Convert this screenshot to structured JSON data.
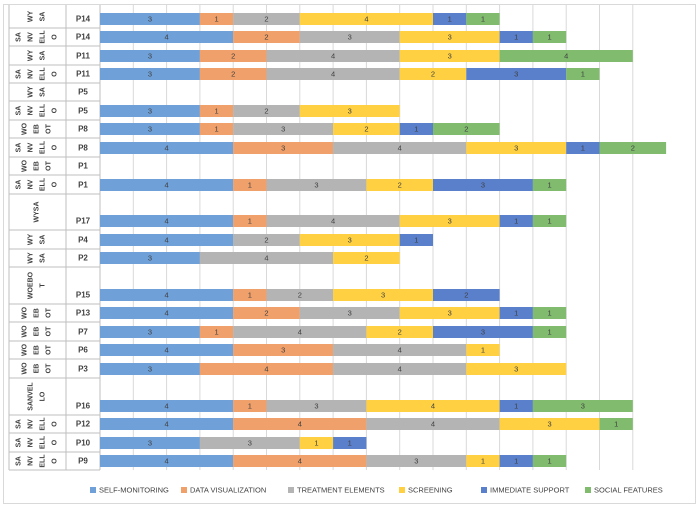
{
  "chart_data": {
    "type": "bar",
    "orientation": "horizontal",
    "stacked": true,
    "grid": true,
    "legend_position": "bottom",
    "xlim": [
      0,
      16
    ],
    "series": [
      {
        "name": "SELF-MONITORING",
        "color": "#6FA0D8"
      },
      {
        "name": "DATA VISUALIZATION",
        "color": "#F0A06A"
      },
      {
        "name": "TREATMENT ELEMENTS",
        "color": "#B4B4B4"
      },
      {
        "name": "SCREENING",
        "color": "#FFD142"
      },
      {
        "name": "IMMEDIATE SUPPORT",
        "color": "#5A7FCB"
      },
      {
        "name": "SOCIAL FEATURES",
        "color": "#80BB6E"
      }
    ],
    "rows": [
      {
        "label": "P14",
        "g1": "WY",
        "g2": "SA",
        "values": [
          3,
          1,
          2,
          4,
          1,
          1
        ]
      },
      {
        "label": "P14",
        "g1": "ELL",
        "g2": "O",
        "values": [
          4,
          2,
          3,
          3,
          1,
          1
        ]
      },
      {
        "label": "P11",
        "g1": "WY",
        "g2": "SA",
        "values": [
          3,
          2,
          4,
          3,
          0,
          4
        ]
      },
      {
        "label": "P11",
        "g1": "ELL",
        "g2": "O",
        "values": [
          3,
          2,
          4,
          2,
          3,
          1
        ]
      },
      {
        "label": "P5",
        "g1": "WY",
        "g2": "SA",
        "values": [
          0,
          0,
          0,
          0,
          0,
          0
        ]
      },
      {
        "label": "P5",
        "g1": "ELL",
        "g2": "O",
        "values": [
          3,
          1,
          2,
          3,
          0,
          0
        ]
      },
      {
        "label": "P8",
        "g1": "EB",
        "g2": "OT",
        "values": [
          3,
          1,
          3,
          2,
          1,
          2
        ]
      },
      {
        "label": "P8",
        "g1": "ELL",
        "g2": "O",
        "values": [
          4,
          3,
          4,
          3,
          1,
          2
        ]
      },
      {
        "label": "P1",
        "g1": "EB",
        "g2": "OT",
        "values": [
          0,
          0,
          0,
          0,
          0,
          0
        ]
      },
      {
        "label": "P1",
        "g1": "ELL",
        "g2": "O",
        "values": [
          4,
          1,
          3,
          2,
          3,
          1
        ]
      },
      {
        "label": "P17",
        "g1": "WY",
        "g2": "SA",
        "values": [
          4,
          1,
          4,
          3,
          1,
          1
        ]
      },
      {
        "label": "P4",
        "g1": "WY",
        "g2": "SA",
        "values": [
          4,
          0,
          2,
          3,
          1,
          0
        ]
      },
      {
        "label": "P2",
        "g1": "WY",
        "g2": "SA",
        "values": [
          3,
          0,
          4,
          2,
          0,
          0
        ]
      },
      {
        "label": "P15",
        "g1": "WOEBO",
        "g2": "T",
        "values": [
          4,
          1,
          2,
          3,
          2,
          0
        ]
      },
      {
        "label": "P13",
        "g1": "WO",
        "g2": "EB",
        "values": [
          4,
          2,
          3,
          3,
          1,
          1
        ]
      },
      {
        "label": "P7",
        "g1": "WO",
        "g2": "EB",
        "values": [
          3,
          1,
          4,
          2,
          3,
          1
        ]
      },
      {
        "label": "P6",
        "g1": "WO",
        "g2": "EB",
        "values": [
          4,
          3,
          4,
          1,
          0,
          0
        ]
      },
      {
        "label": "P3",
        "g1": "WO",
        "g2": "OT",
        "values": [
          3,
          4,
          4,
          3,
          0,
          0
        ]
      },
      {
        "label": "P16",
        "g1": "SANVEL",
        "g2": "LO",
        "values": [
          4,
          1,
          3,
          4,
          1,
          3
        ]
      },
      {
        "label": "P12",
        "g1": "NV",
        "g2": "ELL",
        "values": [
          4,
          4,
          4,
          3,
          0,
          1
        ]
      },
      {
        "label": "P10",
        "g1": "NV",
        "g2": "ELL",
        "values": [
          3,
          0,
          3,
          1,
          1,
          0
        ]
      },
      {
        "label": "P9",
        "g1": "NV",
        "g2": "ELL",
        "values": [
          4,
          4,
          3,
          1,
          1,
          1
        ]
      }
    ],
    "side_labels": [
      {
        "id": "r0a",
        "text": "WY"
      },
      {
        "id": "r0b",
        "text": "SA"
      },
      {
        "id": "r1a",
        "text": "SA"
      },
      {
        "id": "r1b",
        "text": "NV"
      },
      {
        "id": "r1c",
        "text": "ELL"
      },
      {
        "id": "r1d",
        "text": "O"
      },
      {
        "id": "r2a",
        "text": "WY"
      },
      {
        "id": "r2b",
        "text": "SA"
      },
      {
        "id": "r3a",
        "text": "SA"
      },
      {
        "id": "r3b",
        "text": "NV"
      },
      {
        "id": "r3c",
        "text": "ELL"
      },
      {
        "id": "r3d",
        "text": "O"
      },
      {
        "id": "r4a",
        "text": "WY"
      },
      {
        "id": "r4b",
        "text": "SA"
      },
      {
        "id": "r5a",
        "text": "SA"
      },
      {
        "id": "r5b",
        "text": "NV"
      },
      {
        "id": "r5c",
        "text": "ELL"
      },
      {
        "id": "r5d",
        "text": "O"
      },
      {
        "id": "r6a",
        "text": "WO"
      },
      {
        "id": "r6b",
        "text": "EB"
      },
      {
        "id": "r6c",
        "text": "OT"
      },
      {
        "id": "r7a",
        "text": "SA"
      },
      {
        "id": "r7b",
        "text": "NV"
      },
      {
        "id": "r7c",
        "text": "ELL"
      },
      {
        "id": "r7d",
        "text": "O"
      },
      {
        "id": "r8a",
        "text": "WO"
      },
      {
        "id": "r8b",
        "text": "EB"
      },
      {
        "id": "r8c",
        "text": "OT"
      },
      {
        "id": "r9a",
        "text": "SA"
      },
      {
        "id": "r9b",
        "text": "NV"
      },
      {
        "id": "r9c",
        "text": "ELL"
      },
      {
        "id": "r9d",
        "text": "O"
      },
      {
        "id": "r10",
        "text": "WYSA"
      },
      {
        "id": "r11a",
        "text": "WY"
      },
      {
        "id": "r11b",
        "text": "SA"
      },
      {
        "id": "r12a",
        "text": "WY"
      },
      {
        "id": "r12b",
        "text": "SA"
      },
      {
        "id": "r13a",
        "text": "WOEBO"
      },
      {
        "id": "r13b",
        "text": "T"
      },
      {
        "id": "r14a",
        "text": "WO"
      },
      {
        "id": "r14b",
        "text": "EB"
      },
      {
        "id": "r14c",
        "text": "OT"
      },
      {
        "id": "r15a",
        "text": "WO"
      },
      {
        "id": "r15b",
        "text": "EB"
      },
      {
        "id": "r15c",
        "text": "OT"
      },
      {
        "id": "r16a",
        "text": "WO"
      },
      {
        "id": "r16b",
        "text": "EB"
      },
      {
        "id": "r16c",
        "text": "OT"
      },
      {
        "id": "r17a",
        "text": "WO"
      },
      {
        "id": "r17b",
        "text": "EB"
      },
      {
        "id": "r17c",
        "text": "OT"
      },
      {
        "id": "r18a",
        "text": "SANVEL"
      },
      {
        "id": "r18b",
        "text": "LO"
      },
      {
        "id": "r19a",
        "text": "SA"
      },
      {
        "id": "r19b",
        "text": "NV"
      },
      {
        "id": "r19c",
        "text": "ELL"
      },
      {
        "id": "r19d",
        "text": "O"
      },
      {
        "id": "r20a",
        "text": "SA"
      },
      {
        "id": "r20b",
        "text": "NV"
      },
      {
        "id": "r20c",
        "text": "ELL"
      },
      {
        "id": "r20d",
        "text": "O"
      },
      {
        "id": "r21a",
        "text": "SA"
      },
      {
        "id": "r21b",
        "text": "NV"
      },
      {
        "id": "r21c",
        "text": "ELL"
      },
      {
        "id": "r21d",
        "text": "O"
      }
    ]
  }
}
